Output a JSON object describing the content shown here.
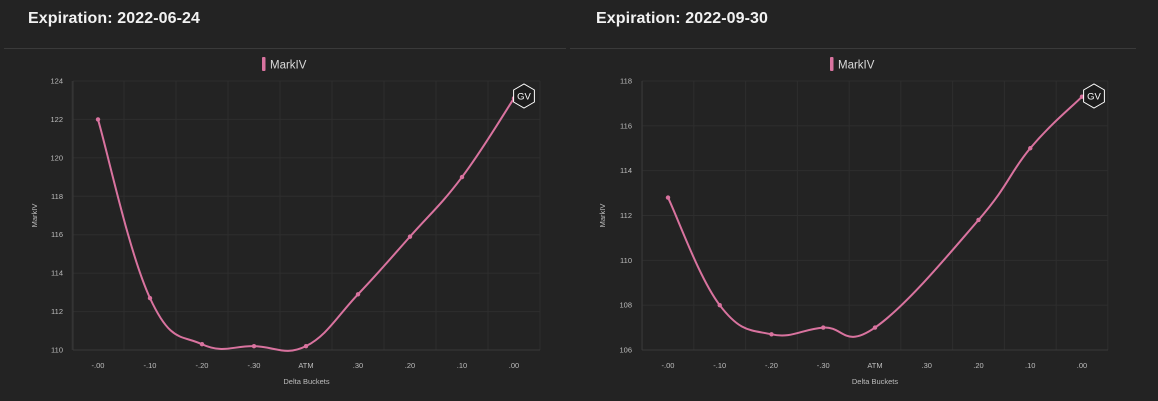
{
  "panels": [
    {
      "header": "Expiration: 2022-06-24"
    },
    {
      "header": "Expiration: 2022-09-30"
    }
  ],
  "watermark": {
    "text": "GV"
  },
  "colors": {
    "series": "#d9739f",
    "background": "#232323",
    "grid": "#2e2e2e"
  },
  "chart_data": [
    {
      "type": "line",
      "categories": [
        "-.00",
        "-.10",
        "-.20",
        "-.30",
        "ATM",
        ".30",
        ".20",
        ".10",
        ".00"
      ],
      "series": [
        {
          "name": "MarkIV",
          "values": [
            122.0,
            112.7,
            110.3,
            110.2,
            110.2,
            112.9,
            115.9,
            119.0,
            123.1
          ]
        }
      ],
      "xlabel": "Delta Buckets",
      "ylabel": "MarkIV",
      "ylim": [
        110,
        124
      ],
      "yticks": [
        110,
        112,
        114,
        116,
        118,
        120,
        122,
        124
      ],
      "grid": true,
      "legend": "top-center"
    },
    {
      "type": "line",
      "categories": [
        "-.00",
        "-.10",
        "-.20",
        "-.30",
        "ATM",
        ".30",
        ".20",
        ".10",
        ".00"
      ],
      "series": [
        {
          "name": "MarkIV",
          "values": [
            112.8,
            108.0,
            106.7,
            107.0,
            107.0,
            null,
            111.8,
            115.0,
            117.3
          ]
        }
      ],
      "xlabel": "Delta Buckets",
      "ylabel": "MarkIV",
      "ylim": [
        106,
        118
      ],
      "yticks": [
        106,
        108,
        110,
        112,
        114,
        116,
        118
      ],
      "grid": true,
      "legend": "top-center"
    }
  ]
}
